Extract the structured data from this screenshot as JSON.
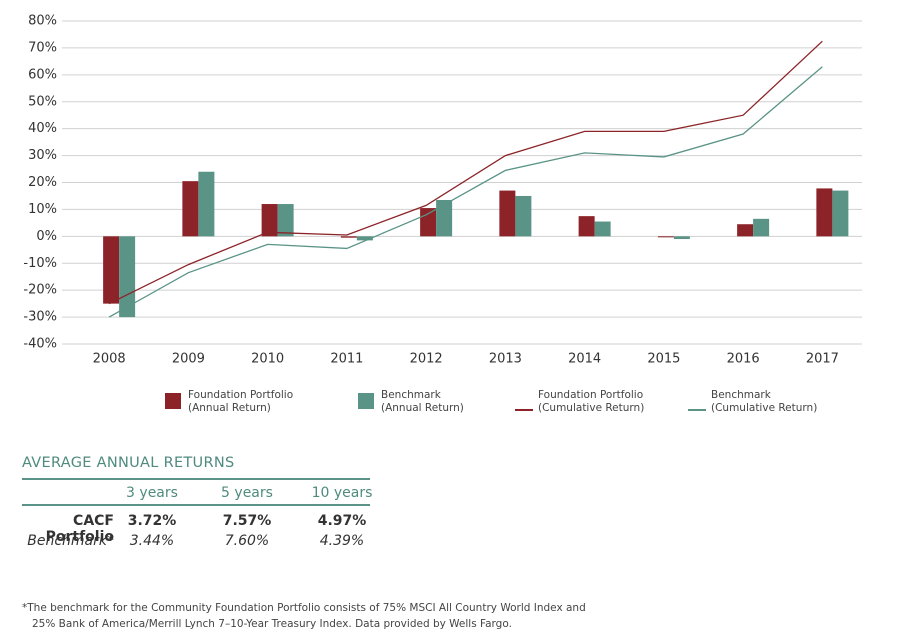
{
  "chart_data": {
    "type": "bar",
    "categories": [
      "2008",
      "2009",
      "2010",
      "2011",
      "2012",
      "2013",
      "2014",
      "2015",
      "2016",
      "2017"
    ],
    "series": [
      {
        "name": "Foundation Portfolio\n(Annual Return)",
        "type": "bar",
        "color": "#8b2328",
        "values": [
          -25,
          20.5,
          12,
          -0.5,
          10.5,
          17,
          7.5,
          -0.3,
          4.5,
          17.8
        ]
      },
      {
        "name": "Benchmark\n(Annual Return)",
        "type": "bar",
        "color": "#5a9486",
        "values": [
          -30,
          24,
          12,
          -1.5,
          13.5,
          15,
          5.5,
          -1,
          6.5,
          17
        ]
      },
      {
        "name": "Foundation Portfolio\n(Cumulative Return)",
        "type": "line",
        "color": "#8b2328",
        "values": [
          -25,
          -10.5,
          1.5,
          0.5,
          11.5,
          30,
          39,
          39,
          45,
          72.5
        ]
      },
      {
        "name": "Benchmark\n(Cumulative Return)",
        "type": "line",
        "color": "#5a9486",
        "values": [
          -30,
          -13.5,
          -3,
          -4.5,
          8,
          24.5,
          31,
          29.5,
          38,
          63
        ]
      }
    ],
    "ylim": [
      -40,
      80
    ],
    "yticks": [
      {
        "value": -40,
        "label": "-40%"
      },
      {
        "value": -30,
        "label": "-30%"
      },
      {
        "value": -20,
        "label": "-20%"
      },
      {
        "value": -10,
        "label": "-10%"
      },
      {
        "value": 0,
        "label": "0%"
      },
      {
        "value": 10,
        "label": "10%"
      },
      {
        "value": 20,
        "label": "20%"
      },
      {
        "value": 30,
        "label": "30%"
      },
      {
        "value": 40,
        "label": "40%"
      },
      {
        "value": 50,
        "label": "50%"
      },
      {
        "value": 60,
        "label": "60%"
      },
      {
        "value": 70,
        "label": "70%"
      },
      {
        "value": 80,
        "label": "80%"
      }
    ],
    "grid": true
  },
  "table": {
    "title": "AVERAGE ANNUAL RETURNS",
    "headers": [
      "3 years",
      "5 years",
      "10 years"
    ],
    "rows": [
      {
        "label": "CACF Portfolio",
        "values": [
          "3.72%",
          "7.57%",
          "4.97%"
        ]
      },
      {
        "label": "Benchmark*",
        "values": [
          "3.44%",
          "7.60%",
          "4.39%"
        ]
      }
    ]
  },
  "footnote": [
    "*The benchmark for the Community Foundation Portfolio consists of 75% MSCI All Country World Index and",
    "25% Bank of America/Merrill Lynch 7–10-Year Treasury Index. Data provided by Wells Fargo."
  ]
}
